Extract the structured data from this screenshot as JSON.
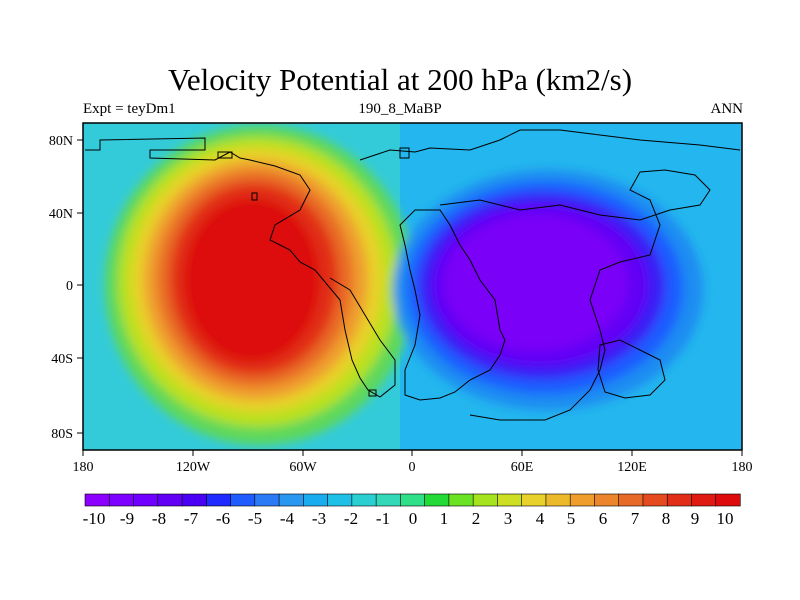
{
  "title": "Velocity Potential at 200 hPa (km2/s)",
  "subtitle": {
    "left": "Expt = teyDm1",
    "center": "190_8_MaBP",
    "right": "ANN"
  },
  "axes": {
    "x_ticks": [
      "180",
      "120W",
      "60W",
      "0",
      "60E",
      "120E",
      "180"
    ],
    "y_ticks": [
      "80N",
      "40N",
      "0",
      "40S",
      "80S"
    ]
  },
  "colorbar": {
    "labels": [
      "-10",
      "-9",
      "-8",
      "-7",
      "-6",
      "-5",
      "-4",
      "-3",
      "-2",
      "-1",
      "0",
      "1",
      "2",
      "3",
      "4",
      "5",
      "6",
      "7",
      "8",
      "9",
      "10"
    ],
    "colors": [
      "#8b00ff",
      "#7e00ff",
      "#7000ff",
      "#6200f5",
      "#4a00f2",
      "#1f2bff",
      "#1f5bff",
      "#2b7bf7",
      "#2a97f0",
      "#19adf0",
      "#1fc0e8",
      "#2bcfd2",
      "#33d8b8",
      "#30e089",
      "#24da37",
      "#6ce224",
      "#a6e31f",
      "#ccdf22",
      "#e8d12a",
      "#ecb92a",
      "#ef9e2d",
      "#eb862e",
      "#e86a28",
      "#e54b20",
      "#e12f17",
      "#df1a12",
      "#dd0b0b"
    ]
  },
  "colors": {
    "ocean_base": "#33cbd9",
    "high_center": "#e41a10",
    "low_center": "#7a00f5",
    "coastline": "#000000"
  }
}
